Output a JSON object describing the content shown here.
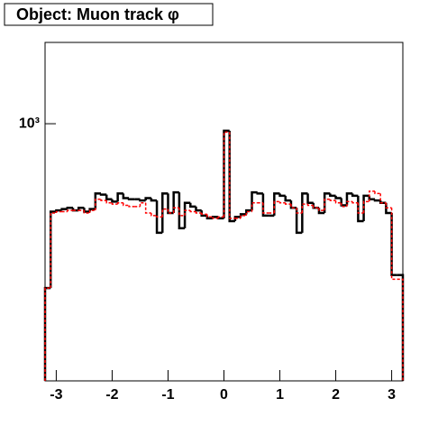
{
  "chart_data": {
    "type": "histogram",
    "title": "Object: Muon track φ",
    "bins": [
      -3.2,
      -3.1,
      -3.0,
      -2.9,
      -2.8,
      -2.7,
      -2.6,
      -2.5,
      -2.4,
      -2.3,
      -2.2,
      -2.1,
      -2.0,
      -1.9,
      -1.8,
      -1.7,
      -1.6,
      -1.5,
      -1.4,
      -1.3,
      -1.2,
      -1.1,
      -1.0,
      -0.9,
      -0.8,
      -0.7,
      -0.6,
      -0.5,
      -0.4,
      -0.3,
      -0.2,
      -0.1,
      0.0,
      0.1,
      0.2,
      0.3,
      0.4,
      0.5,
      0.6,
      0.7,
      0.8,
      0.9,
      1.0,
      1.1,
      1.2,
      1.3,
      1.4,
      1.5,
      1.6,
      1.7,
      1.8,
      1.9,
      2.0,
      2.1,
      2.2,
      2.3,
      2.4,
      2.5,
      2.6,
      2.7,
      2.8,
      2.9,
      3.0,
      3.1,
      3.2
    ],
    "series": [
      {
        "color": "#000000",
        "dashed": false,
        "values": [
          300,
          525,
          530,
          535,
          540,
          530,
          540,
          525,
          535,
          600,
          595,
          575,
          565,
          600,
          580,
          575,
          575,
          570,
          580,
          570,
          450,
          600,
          520,
          605,
          465,
          560,
          545,
          530,
          510,
          500,
          505,
          500,
          950,
          490,
          505,
          515,
          530,
          605,
          600,
          510,
          510,
          600,
          590,
          570,
          540,
          450,
          600,
          560,
          540,
          520,
          600,
          590,
          580,
          550,
          600,
          590,
          490,
          590,
          575,
          570,
          560,
          520,
          330,
          330
        ]
      },
      {
        "color": "#ff0000",
        "dashed": true,
        "values": [
          300,
          520,
          525,
          525,
          530,
          530,
          530,
          520,
          530,
          575,
          570,
          560,
          555,
          560,
          550,
          545,
          545,
          560,
          520,
          510,
          505,
          535,
          520,
          540,
          510,
          530,
          525,
          520,
          515,
          505,
          500,
          505,
          940,
          500,
          500,
          510,
          525,
          560,
          560,
          520,
          520,
          565,
          560,
          555,
          540,
          520,
          555,
          550,
          540,
          530,
          575,
          570,
          560,
          545,
          565,
          560,
          520,
          565,
          610,
          600,
          560,
          540,
          320,
          320
        ]
      }
    ],
    "xlim": [
      -3.2,
      3.2
    ],
    "xticks": [
      -3,
      -2,
      -1,
      0,
      1,
      2,
      3
    ],
    "ylim": [
      152,
      1814
    ],
    "yticks": [
      {
        "value": 1000,
        "label": "10³"
      }
    ],
    "log_y": true
  }
}
